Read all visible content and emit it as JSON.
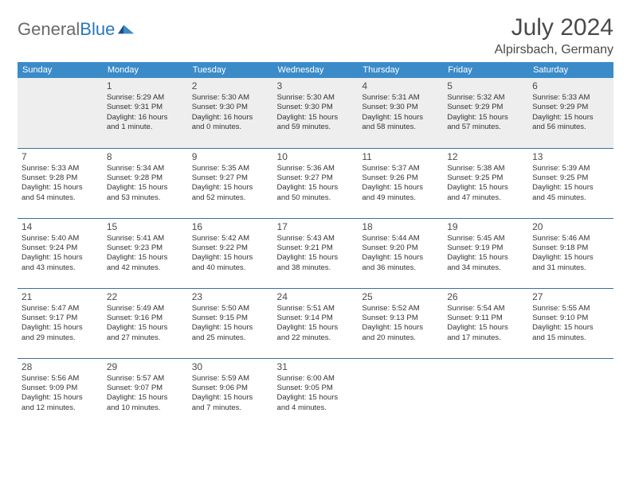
{
  "logo": {
    "word1": "General",
    "word2": "Blue"
  },
  "title": "July 2024",
  "location": "Alpirsbach, Germany",
  "colors": {
    "header_bg": "#3b8bc9",
    "header_text": "#ffffff",
    "row_divider": "#3b6fa0",
    "wk1_bg": "#eeeeee",
    "text": "#333333",
    "logo_gray": "#6a6a6a",
    "logo_blue": "#2a77bb"
  },
  "day_headers": [
    "Sunday",
    "Monday",
    "Tuesday",
    "Wednesday",
    "Thursday",
    "Friday",
    "Saturday"
  ],
  "weeks": [
    [
      {
        "num": "",
        "lines": []
      },
      {
        "num": "1",
        "lines": [
          "Sunrise: 5:29 AM",
          "Sunset: 9:31 PM",
          "Daylight: 16 hours",
          "and 1 minute."
        ]
      },
      {
        "num": "2",
        "lines": [
          "Sunrise: 5:30 AM",
          "Sunset: 9:30 PM",
          "Daylight: 16 hours",
          "and 0 minutes."
        ]
      },
      {
        "num": "3",
        "lines": [
          "Sunrise: 5:30 AM",
          "Sunset: 9:30 PM",
          "Daylight: 15 hours",
          "and 59 minutes."
        ]
      },
      {
        "num": "4",
        "lines": [
          "Sunrise: 5:31 AM",
          "Sunset: 9:30 PM",
          "Daylight: 15 hours",
          "and 58 minutes."
        ]
      },
      {
        "num": "5",
        "lines": [
          "Sunrise: 5:32 AM",
          "Sunset: 9:29 PM",
          "Daylight: 15 hours",
          "and 57 minutes."
        ]
      },
      {
        "num": "6",
        "lines": [
          "Sunrise: 5:33 AM",
          "Sunset: 9:29 PM",
          "Daylight: 15 hours",
          "and 56 minutes."
        ]
      }
    ],
    [
      {
        "num": "7",
        "lines": [
          "Sunrise: 5:33 AM",
          "Sunset: 9:28 PM",
          "Daylight: 15 hours",
          "and 54 minutes."
        ]
      },
      {
        "num": "8",
        "lines": [
          "Sunrise: 5:34 AM",
          "Sunset: 9:28 PM",
          "Daylight: 15 hours",
          "and 53 minutes."
        ]
      },
      {
        "num": "9",
        "lines": [
          "Sunrise: 5:35 AM",
          "Sunset: 9:27 PM",
          "Daylight: 15 hours",
          "and 52 minutes."
        ]
      },
      {
        "num": "10",
        "lines": [
          "Sunrise: 5:36 AM",
          "Sunset: 9:27 PM",
          "Daylight: 15 hours",
          "and 50 minutes."
        ]
      },
      {
        "num": "11",
        "lines": [
          "Sunrise: 5:37 AM",
          "Sunset: 9:26 PM",
          "Daylight: 15 hours",
          "and 49 minutes."
        ]
      },
      {
        "num": "12",
        "lines": [
          "Sunrise: 5:38 AM",
          "Sunset: 9:25 PM",
          "Daylight: 15 hours",
          "and 47 minutes."
        ]
      },
      {
        "num": "13",
        "lines": [
          "Sunrise: 5:39 AM",
          "Sunset: 9:25 PM",
          "Daylight: 15 hours",
          "and 45 minutes."
        ]
      }
    ],
    [
      {
        "num": "14",
        "lines": [
          "Sunrise: 5:40 AM",
          "Sunset: 9:24 PM",
          "Daylight: 15 hours",
          "and 43 minutes."
        ]
      },
      {
        "num": "15",
        "lines": [
          "Sunrise: 5:41 AM",
          "Sunset: 9:23 PM",
          "Daylight: 15 hours",
          "and 42 minutes."
        ]
      },
      {
        "num": "16",
        "lines": [
          "Sunrise: 5:42 AM",
          "Sunset: 9:22 PM",
          "Daylight: 15 hours",
          "and 40 minutes."
        ]
      },
      {
        "num": "17",
        "lines": [
          "Sunrise: 5:43 AM",
          "Sunset: 9:21 PM",
          "Daylight: 15 hours",
          "and 38 minutes."
        ]
      },
      {
        "num": "18",
        "lines": [
          "Sunrise: 5:44 AM",
          "Sunset: 9:20 PM",
          "Daylight: 15 hours",
          "and 36 minutes."
        ]
      },
      {
        "num": "19",
        "lines": [
          "Sunrise: 5:45 AM",
          "Sunset: 9:19 PM",
          "Daylight: 15 hours",
          "and 34 minutes."
        ]
      },
      {
        "num": "20",
        "lines": [
          "Sunrise: 5:46 AM",
          "Sunset: 9:18 PM",
          "Daylight: 15 hours",
          "and 31 minutes."
        ]
      }
    ],
    [
      {
        "num": "21",
        "lines": [
          "Sunrise: 5:47 AM",
          "Sunset: 9:17 PM",
          "Daylight: 15 hours",
          "and 29 minutes."
        ]
      },
      {
        "num": "22",
        "lines": [
          "Sunrise: 5:49 AM",
          "Sunset: 9:16 PM",
          "Daylight: 15 hours",
          "and 27 minutes."
        ]
      },
      {
        "num": "23",
        "lines": [
          "Sunrise: 5:50 AM",
          "Sunset: 9:15 PM",
          "Daylight: 15 hours",
          "and 25 minutes."
        ]
      },
      {
        "num": "24",
        "lines": [
          "Sunrise: 5:51 AM",
          "Sunset: 9:14 PM",
          "Daylight: 15 hours",
          "and 22 minutes."
        ]
      },
      {
        "num": "25",
        "lines": [
          "Sunrise: 5:52 AM",
          "Sunset: 9:13 PM",
          "Daylight: 15 hours",
          "and 20 minutes."
        ]
      },
      {
        "num": "26",
        "lines": [
          "Sunrise: 5:54 AM",
          "Sunset: 9:11 PM",
          "Daylight: 15 hours",
          "and 17 minutes."
        ]
      },
      {
        "num": "27",
        "lines": [
          "Sunrise: 5:55 AM",
          "Sunset: 9:10 PM",
          "Daylight: 15 hours",
          "and 15 minutes."
        ]
      }
    ],
    [
      {
        "num": "28",
        "lines": [
          "Sunrise: 5:56 AM",
          "Sunset: 9:09 PM",
          "Daylight: 15 hours",
          "and 12 minutes."
        ]
      },
      {
        "num": "29",
        "lines": [
          "Sunrise: 5:57 AM",
          "Sunset: 9:07 PM",
          "Daylight: 15 hours",
          "and 10 minutes."
        ]
      },
      {
        "num": "30",
        "lines": [
          "Sunrise: 5:59 AM",
          "Sunset: 9:06 PM",
          "Daylight: 15 hours",
          "and 7 minutes."
        ]
      },
      {
        "num": "31",
        "lines": [
          "Sunrise: 6:00 AM",
          "Sunset: 9:05 PM",
          "Daylight: 15 hours",
          "and 4 minutes."
        ]
      },
      {
        "num": "",
        "lines": []
      },
      {
        "num": "",
        "lines": []
      },
      {
        "num": "",
        "lines": []
      }
    ]
  ]
}
